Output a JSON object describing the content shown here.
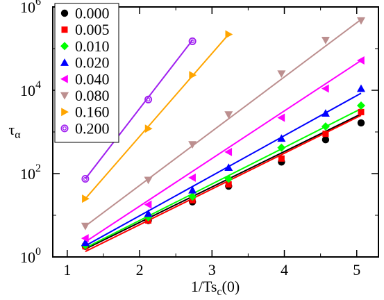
{
  "chart_data": {
    "type": "scatter",
    "title": "",
    "xlabel": "1/Ts",
    "xlabel_subscript": "c",
    "xlabel_suffix": "(0)",
    "ylabel": "τ",
    "ylabel_subscript": "α",
    "xlim": [
      0.8,
      5.3
    ],
    "ylim_log10": [
      0,
      6
    ],
    "y_scale": "log",
    "grid": false,
    "legend_position": "top-left",
    "x_ticks": [
      {
        "value": 1,
        "label": "1"
      },
      {
        "value": 2,
        "label": "2"
      },
      {
        "value": 3,
        "label": "3"
      },
      {
        "value": 4,
        "label": "4"
      },
      {
        "value": 5,
        "label": "5"
      }
    ],
    "y_ticks": [
      {
        "exp": 0,
        "base": "10",
        "sup": "0"
      },
      {
        "exp": 2,
        "base": "10",
        "sup": "2"
      },
      {
        "exp": 4,
        "base": "10",
        "sup": "4"
      },
      {
        "exp": 6,
        "base": "10",
        "sup": "6"
      }
    ],
    "series": [
      {
        "name": "0.000",
        "color": "#000000",
        "marker": "circle",
        "x": [
          1.25,
          2.12,
          2.73,
          3.23,
          3.96,
          4.57,
          5.06
        ],
        "y": [
          1.8,
          7.5,
          21,
          50,
          190,
          650,
          1650
        ],
        "fit_y": [
          1.55,
          2700
        ]
      },
      {
        "name": "0.005",
        "color": "#ff0000",
        "marker": "square",
        "x": [
          1.25,
          2.12,
          2.73,
          3.23,
          3.96,
          4.57,
          5.06
        ],
        "y": [
          1.8,
          7.5,
          23,
          55,
          230,
          900,
          3000
        ],
        "fit_y": [
          1.35,
          2500
        ]
      },
      {
        "name": "0.010",
        "color": "#00ff00",
        "marker": "diamond",
        "x": [
          1.25,
          2.12,
          2.73,
          3.23,
          3.96,
          4.57,
          5.06
        ],
        "y": [
          1.9,
          9,
          28,
          75,
          420,
          1350,
          4300
        ],
        "fit_y": [
          1.65,
          3600
        ]
      },
      {
        "name": "0.020",
        "color": "#0000ff",
        "marker": "triangle-up",
        "x": [
          1.25,
          2.12,
          2.73,
          3.23,
          3.96,
          4.57,
          5.06
        ],
        "y": [
          2.2,
          11,
          40,
          140,
          700,
          2800,
          11000
        ],
        "fit_y": [
          1.85,
          8500
        ]
      },
      {
        "name": "0.040",
        "color": "#ff00ff",
        "marker": "triangle-left",
        "x": [
          1.25,
          2.12,
          2.73,
          3.23,
          3.96,
          4.57,
          5.06
        ],
        "y": [
          2.8,
          18,
          80,
          330,
          2200,
          11000,
          52000
        ],
        "fit_y": [
          2.3,
          52000
        ]
      },
      {
        "name": "0.080",
        "color": "#bc8f8f",
        "marker": "triangle-down",
        "x": [
          1.25,
          2.12,
          2.73,
          3.23,
          3.96,
          4.57,
          5.06
        ],
        "y": [
          5.5,
          70,
          500,
          2600,
          25000,
          160000,
          470000
        ],
        "fit_y": [
          5.5,
          500000
        ]
      },
      {
        "name": "0.160",
        "color": "#ffa500",
        "marker": "triangle-right",
        "x": [
          1.25,
          2.12,
          2.73,
          3.23
        ],
        "y": [
          25,
          1200,
          23000,
          220000
        ],
        "fit_y": [
          25,
          220000
        ]
      },
      {
        "name": "0.200",
        "color": "#a020f0",
        "marker": "circle-open",
        "x": [
          1.25,
          2.12,
          2.73
        ],
        "y": [
          75,
          6000,
          150000
        ],
        "fit_y": [
          75,
          160000
        ]
      }
    ]
  }
}
